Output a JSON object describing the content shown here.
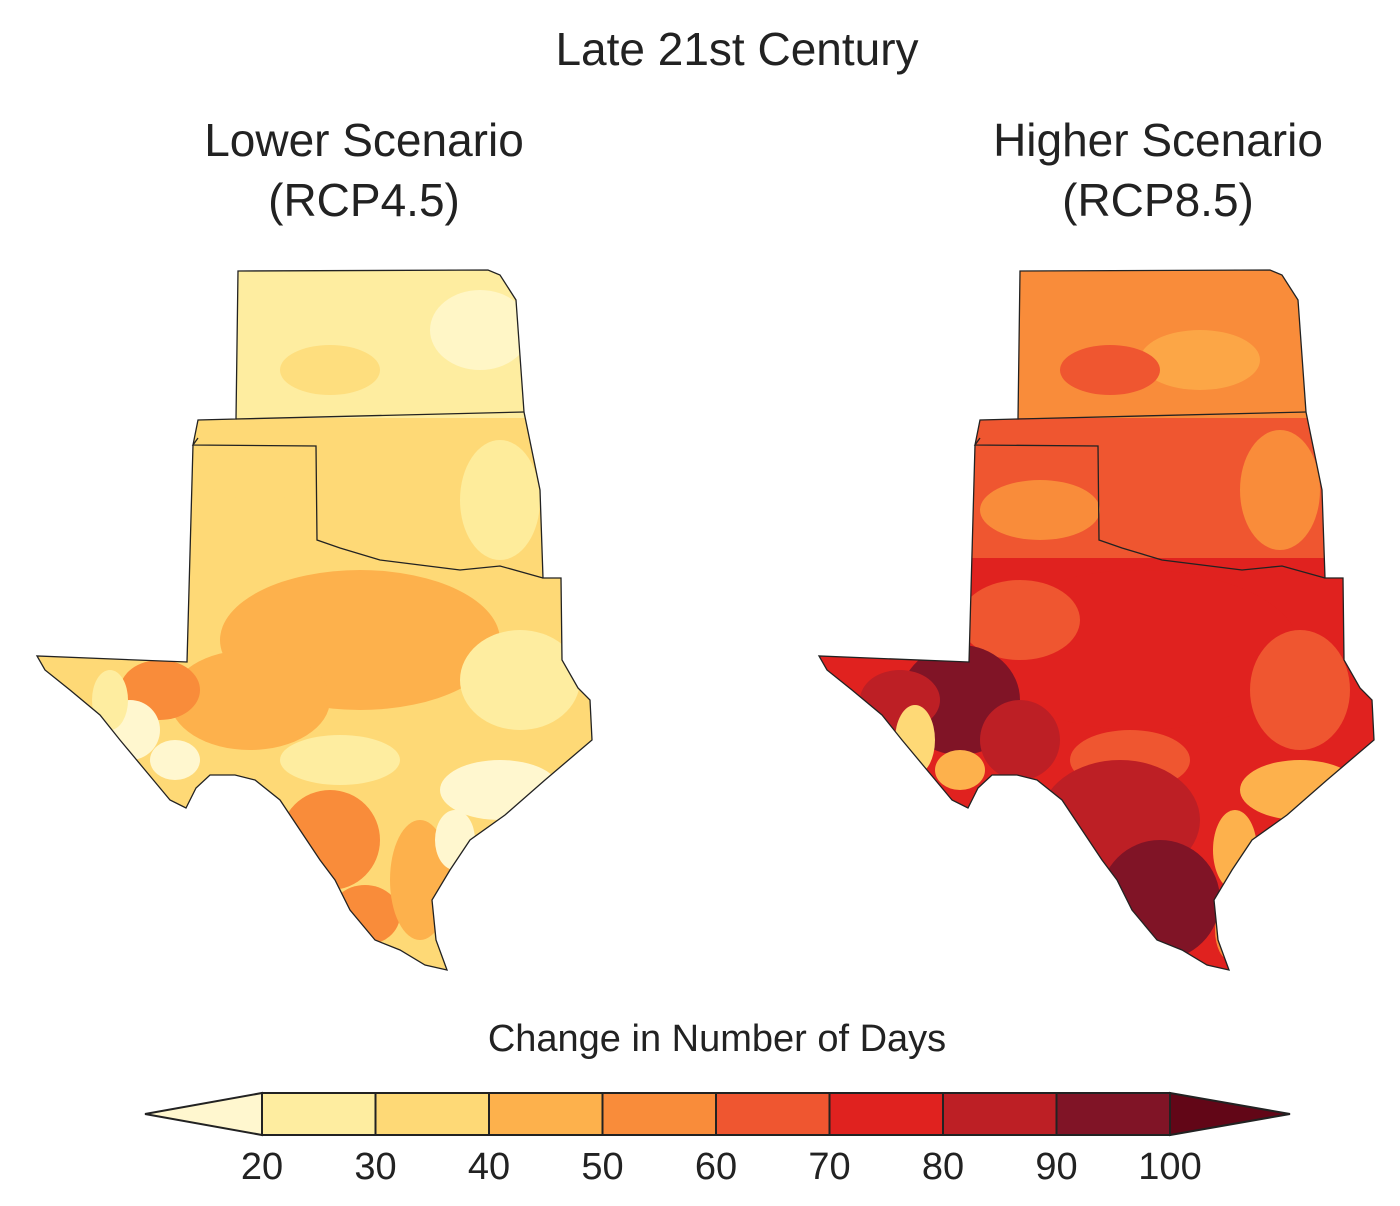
{
  "title": "Late 21st Century",
  "panels": [
    {
      "id": "lower",
      "title_line1": "Lower Scenario",
      "title_line2": "(RCP4.5)"
    },
    {
      "id": "higher",
      "title_line1": "Higher Scenario",
      "title_line2": "(RCP8.5)"
    }
  ],
  "legend": {
    "title": "Change in Number of Days",
    "ticks": [
      "20",
      "30",
      "40",
      "50",
      "60",
      "70",
      "80",
      "90",
      "100"
    ],
    "colors": [
      "#fff7cf",
      "#feeda0",
      "#fed976",
      "#fdb14c",
      "#f98c3a",
      "#ef5630",
      "#e0221f",
      "#bd1f25",
      "#801426",
      "#620617"
    ]
  }
}
